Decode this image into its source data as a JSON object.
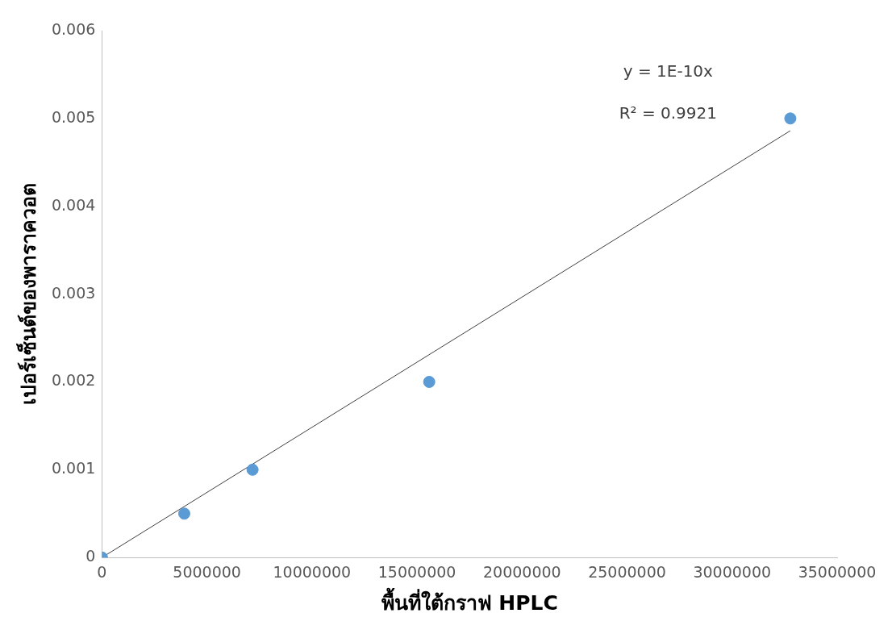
{
  "chart_data": {
    "type": "scatter",
    "xlabel": "พื้นที่ใต้กราฟ HPLC",
    "ylabel": "เปอร์เซ็นต์ของพาราควอต",
    "series": [
      {
        "type": "scatter",
        "marker": "circle",
        "color": "#5b9bd5",
        "x": [
          0,
          3920000,
          7170000,
          15580000,
          32770000
        ],
        "values": [
          0,
          0.0005,
          0.001,
          0.002,
          0.005
        ]
      },
      {
        "type": "line",
        "color": "#404040",
        "x": [
          0,
          32770000
        ],
        "values": [
          0,
          0.00486
        ]
      }
    ],
    "xlim": [
      0,
      35000000
    ],
    "xticks": [
      0,
      5000000,
      10000000,
      15000000,
      20000000,
      25000000,
      30000000,
      35000000
    ],
    "ylim": [
      0,
      0.006
    ],
    "yticks": [
      0,
      0.001,
      0.002,
      0.003,
      0.004,
      0.005,
      0.006
    ],
    "annotations": [
      "y = 1E-10x",
      "R² = 0.9921"
    ],
    "grid": false,
    "legend": false,
    "line_style": "solid"
  }
}
